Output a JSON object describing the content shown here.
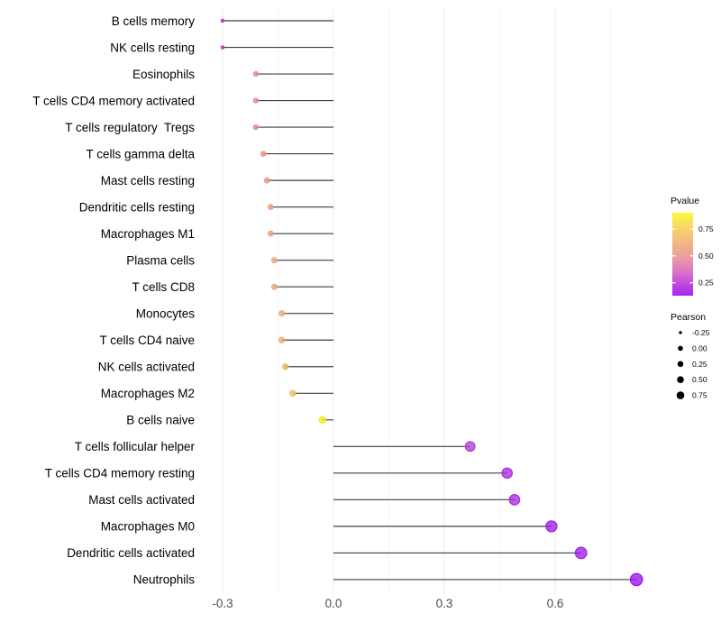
{
  "figure": {
    "background": "#ffffff"
  },
  "chart_data": {
    "type": "lollipop",
    "orientation": "horizontal",
    "title": "",
    "xlabel": "",
    "ylabel": "",
    "xlim": [
      -0.36,
      0.9
    ],
    "x_tick_labels": [
      "-0.3",
      "0.0",
      "0.3",
      "0.6"
    ],
    "x_tick_values": [
      -0.3,
      0.0,
      0.3,
      0.6
    ],
    "grid": {
      "show": true,
      "major_x": [
        -0.3,
        0.0,
        0.3,
        0.6
      ],
      "minor_x": [
        -0.15,
        0.15,
        0.45,
        0.75
      ],
      "major_color": "#ebebeb",
      "minor_color": "#f5f5f5"
    },
    "baseline_x": 0.0,
    "stem_color": "#3f3f3f",
    "categories": [
      "B cells memory",
      "NK cells resting",
      "Eosinophils",
      "T cells CD4 memory activated",
      "T cells regulatory  Tregs",
      "T cells gamma delta",
      "Mast cells resting",
      "Dendritic cells resting",
      "Macrophages M1",
      "Plasma cells",
      "T cells CD8",
      "Monocytes",
      "T cells CD4 naive",
      "NK cells activated",
      "Macrophages M2",
      "B cells naive",
      "T cells follicular helper",
      "T cells CD4 memory resting",
      "Mast cells activated",
      "Macrophages M0",
      "Dendritic cells activated",
      "Neutrophils"
    ],
    "points": [
      {
        "label": "B cells memory",
        "pearson": -0.3,
        "pvalue_est": 0.25,
        "color": "#C13FB4"
      },
      {
        "label": "NK cells resting",
        "pearson": -0.3,
        "pvalue_est": 0.25,
        "color": "#C13FB4"
      },
      {
        "label": "Eosinophils",
        "pearson": -0.21,
        "pvalue_est": 0.45,
        "color": "#E6898E"
      },
      {
        "label": "T cells CD4 memory activated",
        "pearson": -0.21,
        "pvalue_est": 0.45,
        "color": "#E6898E"
      },
      {
        "label": "T cells regulatory  Tregs",
        "pearson": -0.21,
        "pvalue_est": 0.45,
        "color": "#E6898E"
      },
      {
        "label": "T cells gamma delta",
        "pearson": -0.19,
        "pvalue_est": 0.48,
        "color": "#E99580"
      },
      {
        "label": "Mast cells resting",
        "pearson": -0.18,
        "pvalue_est": 0.5,
        "color": "#EA9B7F"
      },
      {
        "label": "Dendritic cells resting",
        "pearson": -0.17,
        "pvalue_est": 0.51,
        "color": "#EBA07E"
      },
      {
        "label": "Macrophages M1",
        "pearson": -0.17,
        "pvalue_est": 0.51,
        "color": "#EBA27D"
      },
      {
        "label": "Plasma cells",
        "pearson": -0.16,
        "pvalue_est": 0.52,
        "color": "#ECA57C"
      },
      {
        "label": "T cells CD8",
        "pearson": -0.16,
        "pvalue_est": 0.52,
        "color": "#ECA67C"
      },
      {
        "label": "Monocytes",
        "pearson": -0.14,
        "pvalue_est": 0.55,
        "color": "#EDAD75"
      },
      {
        "label": "T cells CD4 naive",
        "pearson": -0.14,
        "pvalue_est": 0.55,
        "color": "#EDAE74"
      },
      {
        "label": "NK cells activated",
        "pearson": -0.13,
        "pvalue_est": 0.57,
        "color": "#EDB571"
      },
      {
        "label": "Macrophages M2",
        "pearson": -0.11,
        "pvalue_est": 0.62,
        "color": "#EEC16A"
      },
      {
        "label": "B cells naive",
        "pearson": -0.03,
        "pvalue_est": 0.9,
        "color": "#F2EF19"
      },
      {
        "label": "T cells follicular helper",
        "pearson": 0.37,
        "pvalue_est": 0.2,
        "color": "#B23CD4"
      },
      {
        "label": "T cells CD4 memory resting",
        "pearson": 0.47,
        "pvalue_est": 0.13,
        "color": "#A92CDE"
      },
      {
        "label": "Mast cells activated",
        "pearson": 0.49,
        "pvalue_est": 0.13,
        "color": "#A92CDE"
      },
      {
        "label": "Macrophages M0",
        "pearson": 0.59,
        "pvalue_est": 0.09,
        "color": "#A21FE5"
      },
      {
        "label": "Dendritic cells activated",
        "pearson": 0.67,
        "pvalue_est": 0.08,
        "color": "#A01CE7"
      },
      {
        "label": "Neutrophils",
        "pearson": 0.82,
        "pvalue_est": 0.05,
        "color": "#9B12EA"
      }
    ],
    "legend_position": "right",
    "color_legend": {
      "title": "Pvalue",
      "tick_labels": [
        "0.75",
        "0.50",
        "0.25"
      ],
      "tick_values": [
        0.75,
        0.5,
        0.25
      ],
      "range": [
        0.9,
        0.13
      ],
      "gradient": [
        {
          "offset": 0.0,
          "color": "#FBF93C"
        },
        {
          "offset": 0.18,
          "color": "#F7D567"
        },
        {
          "offset": 0.4,
          "color": "#EFB188"
        },
        {
          "offset": 0.55,
          "color": "#E99BA4"
        },
        {
          "offset": 0.72,
          "color": "#D873C9"
        },
        {
          "offset": 0.88,
          "color": "#BC43E3"
        },
        {
          "offset": 1.0,
          "color": "#A922F2"
        }
      ]
    },
    "size_legend": {
      "title": "Pearson",
      "entries": [
        {
          "label": "-0.25",
          "r": 1.7
        },
        {
          "label": "0.00",
          "r": 2.8
        },
        {
          "label": "0.25",
          "r": 3.3
        },
        {
          "label": "0.50",
          "r": 3.8
        },
        {
          "label": "0.75",
          "r": 4.3
        }
      ],
      "dot_color": "#000000"
    }
  }
}
